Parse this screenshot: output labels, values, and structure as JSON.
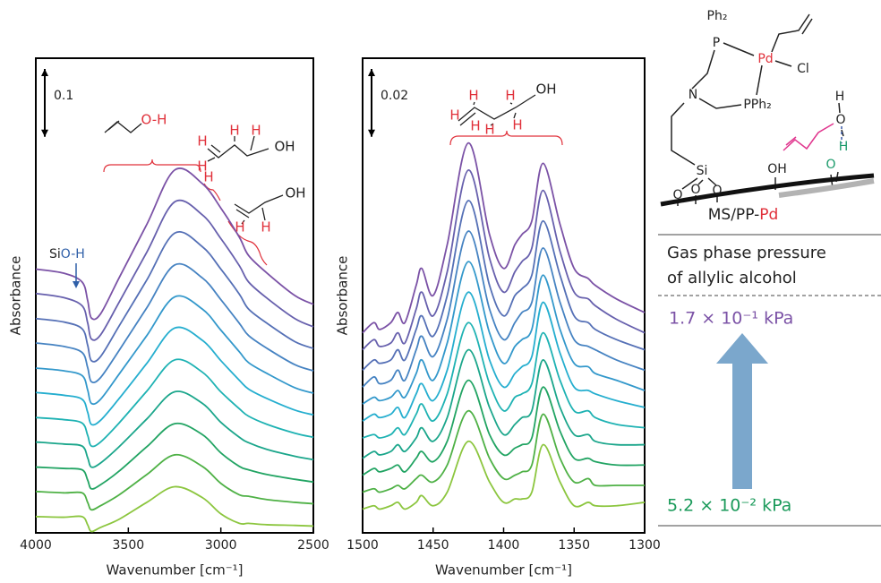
{
  "chart_data": [
    {
      "type": "line",
      "x_label": "Wavenumber [cm⁻¹]",
      "y_label": "Absorbance",
      "x": [
        4000,
        3850,
        3750,
        3720,
        3700,
        3650,
        3550,
        3400,
        3250,
        3100,
        3000,
        2900,
        2850,
        2750,
        2600,
        2500
      ],
      "xlim": [
        4000,
        2500
      ],
      "xticks": [
        4000,
        3500,
        3000,
        2500
      ],
      "ylim": [
        0,
        0.7
      ],
      "scale_bar": 0.1,
      "series": [
        {
          "color": "#7b52a6",
          "values": [
            0.389,
            0.383,
            0.37,
            0.343,
            0.317,
            0.323,
            0.376,
            0.455,
            0.535,
            0.515,
            0.479,
            0.436,
            0.409,
            0.383,
            0.35,
            0.337
          ]
        },
        {
          "color": "#6760ad",
          "values": [
            0.353,
            0.347,
            0.335,
            0.31,
            0.286,
            0.292,
            0.34,
            0.414,
            0.488,
            0.469,
            0.434,
            0.394,
            0.37,
            0.346,
            0.316,
            0.304
          ]
        },
        {
          "color": "#5570b6",
          "values": [
            0.316,
            0.311,
            0.301,
            0.277,
            0.254,
            0.26,
            0.305,
            0.373,
            0.442,
            0.422,
            0.389,
            0.352,
            0.33,
            0.309,
            0.282,
            0.272
          ]
        },
        {
          "color": "#4683c2",
          "values": [
            0.28,
            0.275,
            0.266,
            0.244,
            0.223,
            0.229,
            0.269,
            0.332,
            0.395,
            0.376,
            0.344,
            0.309,
            0.291,
            0.272,
            0.248,
            0.239
          ]
        },
        {
          "color": "#3398cb",
          "values": [
            0.243,
            0.239,
            0.232,
            0.211,
            0.191,
            0.197,
            0.234,
            0.291,
            0.348,
            0.33,
            0.299,
            0.267,
            0.251,
            0.235,
            0.214,
            0.206
          ]
        },
        {
          "color": "#25aecf",
          "values": [
            0.207,
            0.203,
            0.197,
            0.178,
            0.16,
            0.166,
            0.198,
            0.25,
            0.302,
            0.284,
            0.254,
            0.225,
            0.212,
            0.198,
            0.181,
            0.174
          ]
        },
        {
          "color": "#1eb2b3",
          "values": [
            0.17,
            0.167,
            0.162,
            0.144,
            0.128,
            0.134,
            0.162,
            0.209,
            0.255,
            0.237,
            0.208,
            0.183,
            0.172,
            0.16,
            0.147,
            0.141
          ]
        },
        {
          "color": "#1ba68b",
          "values": [
            0.134,
            0.131,
            0.128,
            0.111,
            0.097,
            0.103,
            0.127,
            0.168,
            0.208,
            0.191,
            0.163,
            0.141,
            0.133,
            0.123,
            0.113,
            0.108
          ]
        },
        {
          "color": "#22a463",
          "values": [
            0.097,
            0.095,
            0.093,
            0.078,
            0.065,
            0.071,
            0.091,
            0.127,
            0.161,
            0.145,
            0.118,
            0.098,
            0.093,
            0.086,
            0.079,
            0.075
          ]
        },
        {
          "color": "#4fb146",
          "values": [
            0.061,
            0.059,
            0.059,
            0.045,
            0.034,
            0.04,
            0.056,
            0.086,
            0.115,
            0.098,
            0.073,
            0.056,
            0.054,
            0.049,
            0.045,
            0.043
          ]
        },
        {
          "color": "#8cc63f",
          "values": [
            0.024,
            0.023,
            0.024,
            0.012,
            0.002,
            0.008,
            0.02,
            0.045,
            0.068,
            0.052,
            0.028,
            0.014,
            0.014,
            0.012,
            0.011,
            0.01
          ]
        }
      ],
      "annotations": {
        "silanol": [
          "Si",
          "O-H"
        ],
        "molecules": [
          [
            "O-H"
          ],
          [
            "H",
            "H",
            "H",
            "H",
            "H",
            "OH"
          ],
          [
            "OH",
            "H",
            "H"
          ]
        ]
      }
    },
    {
      "type": "line",
      "x_label": "Wavenumber [cm⁻¹]",
      "y_label": "Absorbance",
      "x": [
        1500,
        1492,
        1488,
        1480,
        1475,
        1470,
        1462,
        1458,
        1450,
        1440,
        1425,
        1410,
        1400,
        1392,
        1387,
        1380,
        1372,
        1360,
        1350,
        1340,
        1335,
        1320,
        1300
      ],
      "xlim": [
        1500,
        1300
      ],
      "xticks": [
        1500,
        1450,
        1400,
        1350,
        1300
      ],
      "ylim": [
        0,
        0.14
      ],
      "scale_bar": 0.02,
      "series": [
        {
          "color": "#7b52a6",
          "values": [
            0.059,
            0.062,
            0.06,
            0.062,
            0.065,
            0.062,
            0.073,
            0.078,
            0.07,
            0.085,
            0.115,
            0.088,
            0.078,
            0.085,
            0.088,
            0.092,
            0.109,
            0.091,
            0.078,
            0.075,
            0.073,
            0.069,
            0.065
          ]
        },
        {
          "color": "#6760ad",
          "values": [
            0.054,
            0.057,
            0.055,
            0.056,
            0.059,
            0.056,
            0.066,
            0.071,
            0.064,
            0.077,
            0.107,
            0.081,
            0.071,
            0.077,
            0.08,
            0.084,
            0.101,
            0.083,
            0.071,
            0.069,
            0.067,
            0.063,
            0.059
          ]
        },
        {
          "color": "#5570b6",
          "values": [
            0.048,
            0.051,
            0.05,
            0.051,
            0.054,
            0.051,
            0.06,
            0.064,
            0.058,
            0.07,
            0.098,
            0.073,
            0.064,
            0.07,
            0.072,
            0.076,
            0.092,
            0.076,
            0.064,
            0.062,
            0.06,
            0.057,
            0.054
          ]
        },
        {
          "color": "#4683c2",
          "values": [
            0.043,
            0.046,
            0.044,
            0.045,
            0.048,
            0.045,
            0.054,
            0.058,
            0.052,
            0.063,
            0.089,
            0.066,
            0.057,
            0.062,
            0.065,
            0.068,
            0.084,
            0.068,
            0.057,
            0.055,
            0.054,
            0.051,
            0.048
          ]
        },
        {
          "color": "#3398cb",
          "values": [
            0.038,
            0.04,
            0.039,
            0.04,
            0.042,
            0.04,
            0.047,
            0.051,
            0.045,
            0.056,
            0.08,
            0.059,
            0.05,
            0.055,
            0.057,
            0.06,
            0.076,
            0.06,
            0.05,
            0.049,
            0.047,
            0.045,
            0.042
          ]
        },
        {
          "color": "#25aecf",
          "values": [
            0.033,
            0.035,
            0.034,
            0.035,
            0.037,
            0.034,
            0.041,
            0.044,
            0.039,
            0.048,
            0.071,
            0.051,
            0.043,
            0.047,
            0.049,
            0.052,
            0.068,
            0.053,
            0.043,
            0.042,
            0.041,
            0.039,
            0.037
          ]
        },
        {
          "color": "#1eb2b3",
          "values": [
            0.028,
            0.029,
            0.028,
            0.029,
            0.031,
            0.029,
            0.035,
            0.038,
            0.033,
            0.041,
            0.062,
            0.044,
            0.036,
            0.04,
            0.041,
            0.044,
            0.059,
            0.045,
            0.036,
            0.036,
            0.034,
            0.032,
            0.031
          ]
        },
        {
          "color": "#1ba68b",
          "values": [
            0.022,
            0.024,
            0.023,
            0.024,
            0.026,
            0.024,
            0.028,
            0.031,
            0.027,
            0.034,
            0.054,
            0.037,
            0.029,
            0.032,
            0.034,
            0.036,
            0.051,
            0.037,
            0.029,
            0.029,
            0.027,
            0.026,
            0.026
          ]
        },
        {
          "color": "#22a463",
          "values": [
            0.017,
            0.019,
            0.018,
            0.019,
            0.02,
            0.018,
            0.022,
            0.024,
            0.021,
            0.027,
            0.045,
            0.029,
            0.023,
            0.025,
            0.026,
            0.028,
            0.043,
            0.03,
            0.022,
            0.022,
            0.021,
            0.02,
            0.02
          ]
        },
        {
          "color": "#4fb146",
          "values": [
            0.012,
            0.013,
            0.012,
            0.013,
            0.014,
            0.013,
            0.016,
            0.017,
            0.015,
            0.02,
            0.036,
            0.022,
            0.016,
            0.017,
            0.018,
            0.02,
            0.035,
            0.022,
            0.015,
            0.016,
            0.014,
            0.014,
            0.014
          ]
        },
        {
          "color": "#8cc63f",
          "values": [
            0.007,
            0.008,
            0.007,
            0.008,
            0.009,
            0.007,
            0.009,
            0.011,
            0.008,
            0.012,
            0.027,
            0.015,
            0.009,
            0.01,
            0.01,
            0.012,
            0.026,
            0.015,
            0.008,
            0.009,
            0.008,
            0.008,
            0.009
          ]
        }
      ],
      "annotations": {
        "molecules": [
          [
            "H",
            "H",
            "H",
            "H",
            "H",
            "H",
            "OH"
          ]
        ]
      }
    }
  ],
  "scheme": {
    "atoms": [
      "Ph₂",
      "P",
      "Pd",
      "Cl",
      "N",
      "PPh₂",
      "Si",
      "O",
      "O",
      "O",
      "OH",
      "H",
      "O",
      "H",
      "O"
    ],
    "caption": [
      "MS/PP-",
      "Pd"
    ]
  },
  "pressure_panel": {
    "heading": [
      "Gas phase pressure",
      "of allylic alcohol"
    ],
    "high": "1.7 × 10⁻¹ kPa",
    "low": "5.2 × 10⁻² kPa"
  }
}
